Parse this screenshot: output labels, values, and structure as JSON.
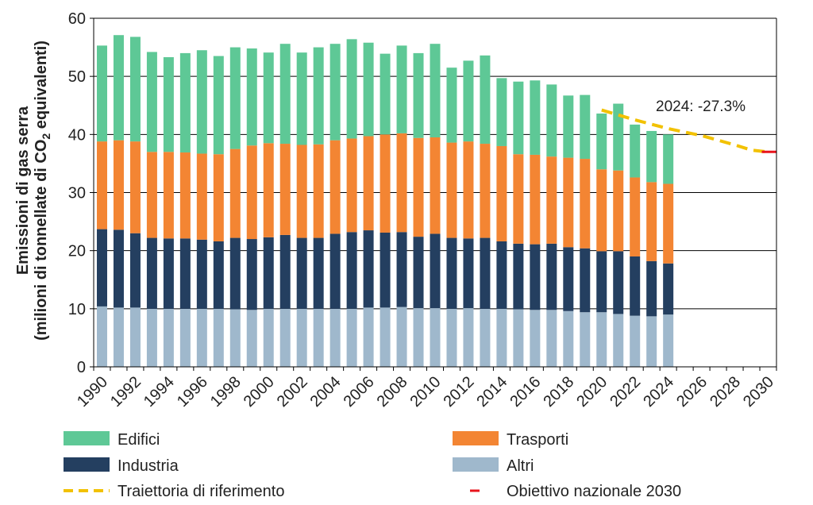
{
  "chart_data": {
    "type": "bar",
    "stacked": true,
    "x": [
      1990,
      1991,
      1992,
      1993,
      1994,
      1995,
      1996,
      1997,
      1998,
      1999,
      2000,
      2001,
      2002,
      2003,
      2004,
      2005,
      2006,
      2007,
      2008,
      2009,
      2010,
      2011,
      2012,
      2013,
      2014,
      2015,
      2016,
      2017,
      2018,
      2019,
      2020,
      2021,
      2022,
      2023,
      2024
    ],
    "x_ticks": [
      "1990",
      "1992",
      "1994",
      "1996",
      "1998",
      "2000",
      "2002",
      "2004",
      "2006",
      "2008",
      "2010",
      "2012",
      "2014",
      "2016",
      "2018",
      "2020",
      "2022",
      "2024",
      "2026",
      "2028",
      "2030"
    ],
    "xlim": [
      1990,
      2030
    ],
    "ylim": [
      0,
      60
    ],
    "y_ticks": [
      0,
      10,
      20,
      30,
      40,
      50,
      60
    ],
    "ylabel_line1": "Emissioni  di gas serra",
    "ylabel_line2_before": "(milioni di tonnellate di CO",
    "ylabel_line2_sub": "2",
    "ylabel_line2_after": " equivalenti)",
    "grid": true,
    "series": [
      {
        "name": "Altri",
        "color": "#9fb8cc",
        "values": [
          10.4,
          10.2,
          10.2,
          10.0,
          10.0,
          10.0,
          10.0,
          10.0,
          9.9,
          9.8,
          10.0,
          10.0,
          10.0,
          10.0,
          10.0,
          10.0,
          10.2,
          10.2,
          10.3,
          10.1,
          10.1,
          10.0,
          10.1,
          10.0,
          10.0,
          9.9,
          9.8,
          9.8,
          9.6,
          9.4,
          9.4,
          9.1,
          8.8,
          8.7,
          9.0
        ]
      },
      {
        "name": "Industria",
        "color": "#243f60",
        "values": [
          13.3,
          13.4,
          12.8,
          12.2,
          12.1,
          12.1,
          11.9,
          11.6,
          12.3,
          12.2,
          12.3,
          12.7,
          12.2,
          12.2,
          12.9,
          13.2,
          13.3,
          12.9,
          12.9,
          12.3,
          12.8,
          12.2,
          12.0,
          12.2,
          11.6,
          11.3,
          11.3,
          11.4,
          11.0,
          11.0,
          10.5,
          10.8,
          10.2,
          9.5,
          8.8
        ]
      },
      {
        "name": "Trasporti",
        "color": "#f38533",
        "values": [
          15.1,
          15.4,
          15.8,
          14.8,
          14.9,
          14.8,
          14.8,
          15.0,
          15.3,
          16.1,
          16.2,
          15.7,
          16.0,
          16.1,
          16.1,
          16.1,
          16.2,
          16.9,
          17.0,
          17.0,
          16.6,
          16.4,
          16.7,
          16.2,
          16.4,
          15.4,
          15.4,
          15.0,
          15.4,
          15.4,
          14.1,
          13.9,
          13.6,
          13.6,
          13.7
        ]
      },
      {
        "name": "Edifici",
        "color": "#5ec896",
        "values": [
          16.5,
          18.1,
          18.0,
          17.2,
          16.3,
          17.1,
          17.8,
          16.9,
          17.5,
          16.7,
          15.6,
          17.2,
          15.9,
          16.7,
          16.6,
          17.1,
          16.1,
          13.9,
          15.1,
          14.6,
          16.1,
          12.9,
          13.9,
          15.2,
          11.7,
          12.5,
          12.8,
          12.4,
          10.7,
          11.0,
          9.6,
          11.5,
          9.1,
          8.8,
          8.5
        ]
      }
    ],
    "reference_trajectory": {
      "name": "Traiettoria di riferimento",
      "color": "#f2c100",
      "x": [
        2020,
        2022,
        2024,
        2026,
        2028,
        2029,
        2030
      ],
      "y": [
        44.2,
        42.5,
        41.0,
        39.8,
        38.2,
        37.3,
        37.0
      ]
    },
    "national_target": {
      "name": "Obiettivo nazionale 2030",
      "color": "#e8141c",
      "x": 2030,
      "y": 37.0
    },
    "annotation": "2024: -27.3%",
    "legend": [
      {
        "key": "edifici",
        "label": "Edifici",
        "color": "#5ec896",
        "kind": "box"
      },
      {
        "key": "trasporti",
        "label": "Trasporti",
        "color": "#f38533",
        "kind": "box"
      },
      {
        "key": "industria",
        "label": "Industria",
        "color": "#243f60",
        "kind": "box"
      },
      {
        "key": "altri",
        "label": "Altri",
        "color": "#9fb8cc",
        "kind": "box"
      },
      {
        "key": "traiettoria",
        "label": "Traiettoria di riferimento",
        "color": "#f2c100",
        "kind": "dash"
      },
      {
        "key": "obiettivo",
        "label": "Obiettivo nazionale 2030",
        "color": "#e8141c",
        "kind": "short"
      }
    ],
    "legend_placement": "bottom"
  }
}
